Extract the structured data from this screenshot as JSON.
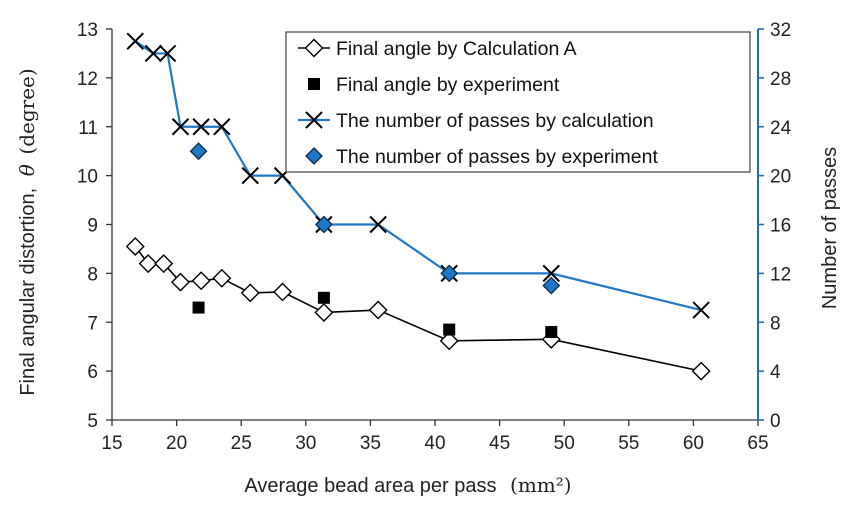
{
  "chart_data": {
    "type": "line",
    "xlabel_main": "Average bead area per pass",
    "xlabel_unit": "(mm²)",
    "ylabel_main": "Final angular distortion,",
    "ylabel_symbol": "θ",
    "ylabel_unit": "(degree)",
    "y2label": "Number of passes",
    "xlim": [
      15,
      65
    ],
    "ylim": [
      5,
      13
    ],
    "y2lim": [
      0,
      32
    ],
    "x_ticks": [
      15,
      20,
      25,
      30,
      35,
      40,
      45,
      50,
      55,
      60,
      65
    ],
    "y_ticks": [
      5,
      6,
      7,
      8,
      9,
      10,
      11,
      12,
      13
    ],
    "y2_ticks": [
      0,
      4,
      8,
      12,
      16,
      20,
      24,
      28,
      32
    ],
    "grid": false,
    "legend_position": "top-right",
    "colors": {
      "black": "#000000",
      "blue": "#1f77c8",
      "right_axis": "#1f6fb5"
    },
    "series": [
      {
        "name": "Final angle by Calculation A",
        "axis": "left",
        "style": "line-diamond-open",
        "x": [
          16.8,
          17.8,
          19.0,
          20.3,
          21.9,
          23.5,
          25.7,
          28.2,
          31.4,
          35.6,
          41.1,
          49.0,
          60.6
        ],
        "y": [
          8.55,
          8.2,
          8.2,
          7.82,
          7.85,
          7.9,
          7.6,
          7.62,
          7.2,
          7.25,
          6.62,
          6.65,
          6.0
        ]
      },
      {
        "name": "Final angle by experiment",
        "axis": "left",
        "style": "square-filled",
        "x": [
          21.7,
          31.4,
          41.1,
          49.0
        ],
        "y": [
          7.3,
          7.5,
          6.85,
          6.8
        ]
      },
      {
        "name": "The number of passes by calculation",
        "axis": "right",
        "style": "step-x",
        "x": [
          16.8,
          18.2,
          19.3,
          20.3,
          21.9,
          23.5,
          25.7,
          28.2,
          31.4,
          35.6,
          41.1,
          49.0,
          60.6
        ],
        "y": [
          31,
          30,
          30,
          24,
          24,
          24,
          20,
          20,
          16,
          16,
          12,
          12,
          9
        ]
      },
      {
        "name": "The number of passes by experiment",
        "axis": "right",
        "style": "diamond-blue",
        "x": [
          21.7,
          31.4,
          41.1,
          49.0
        ],
        "y": [
          22,
          16,
          12,
          11
        ]
      }
    ]
  }
}
